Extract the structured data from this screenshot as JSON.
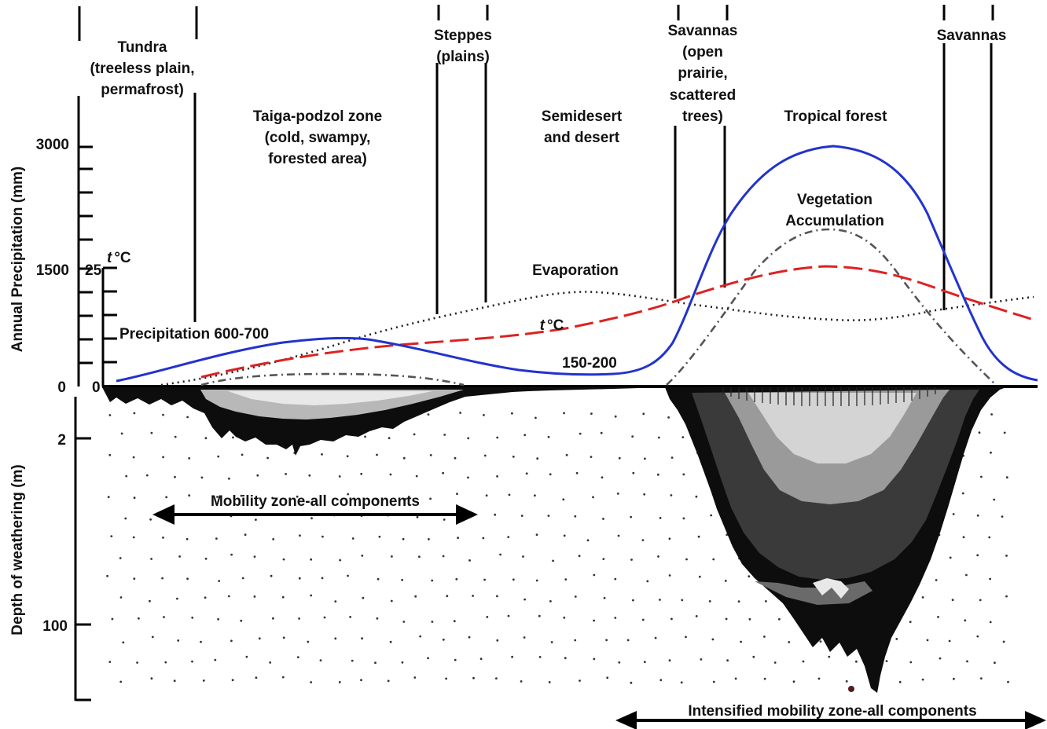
{
  "axes": {
    "precipitation_label": "Annual Precipitation (mm)",
    "depth_label": "Depth of weathering (m)",
    "precip_ticks": [
      "3000",
      "1500",
      "0"
    ],
    "temp_unit_italic": "t",
    "temp_unit": "°C",
    "temp_ticks": [
      "25",
      "0"
    ],
    "depth_ticks": [
      "2",
      "100"
    ]
  },
  "zones": {
    "tundra": [
      "Tundra",
      "(treeless plain,",
      "permafrost)"
    ],
    "taiga": [
      "Taiga-podzol zone",
      "(cold, swampy,",
      "forested area)"
    ],
    "steppes": [
      "Steppes",
      "(plains)"
    ],
    "semidesert": [
      "Semidesert",
      "and desert"
    ],
    "savannas_left": [
      "Savannas",
      "(open",
      "prairie,",
      "scattered",
      "trees)"
    ],
    "tropical": [
      "Tropical forest"
    ],
    "savannas_right": [
      "Savannas"
    ]
  },
  "curves": {
    "evaporation": "Evaporation",
    "temperature_italic": "t",
    "temperature_unit": "°C",
    "vegetation": [
      "Vegetation",
      "Accumulation"
    ],
    "precip_high": "Precipitation 600-700",
    "precip_low": "150-200"
  },
  "arrows": {
    "mobility": "Mobility zone-all components",
    "intensified": "Intensified mobility zone-all components"
  },
  "colors": {
    "precipitation": "#2233cc",
    "temperature": "#dd2222",
    "evaporation": "#222222",
    "vegetation": "#555555",
    "weathering": "#111111"
  }
}
